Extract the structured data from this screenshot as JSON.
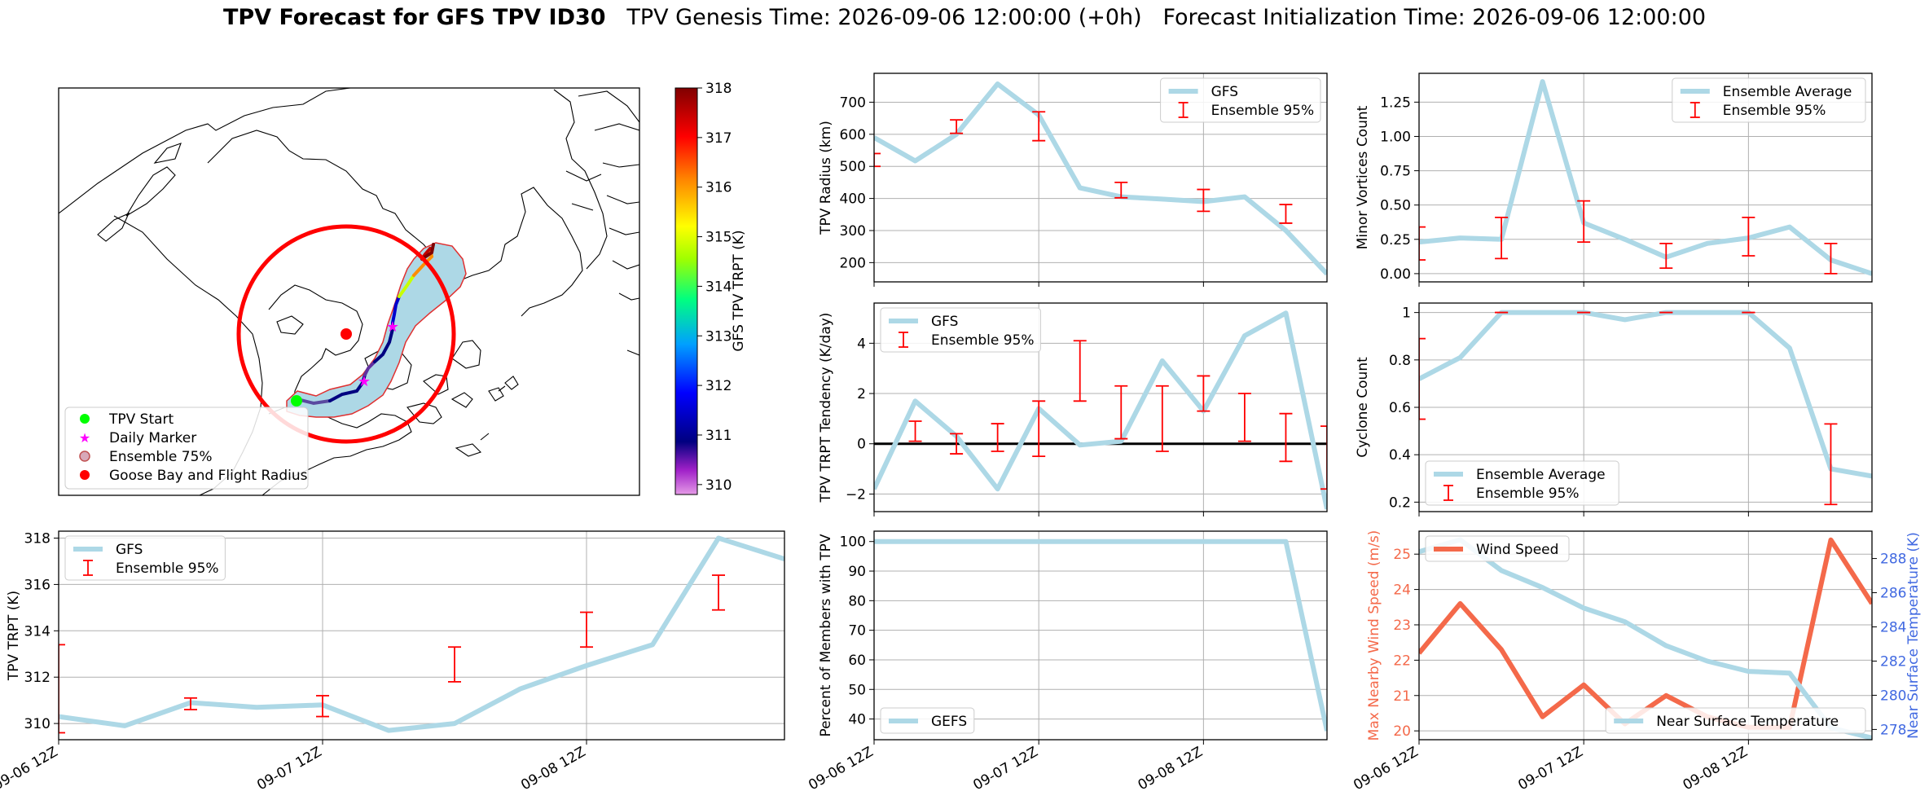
{
  "title": {
    "bold": "TPV Forecast for GFS TPV ID30",
    "genesis": "TPV Genesis Time: 2026-09-06 12:00:00 (+0h)",
    "init": "Forecast Initialization Time: 2026-09-06 12:00:00"
  },
  "colors": {
    "series": "#add8e6",
    "errorbar": "#ff0000",
    "wind": "#f4694a",
    "temp_axis": "#4169e1",
    "grid": "#b0b0b0"
  },
  "chart_data": [
    {
      "id": "map",
      "type": "scatter",
      "legend": [
        {
          "label": "TPV Start",
          "marker": "circle",
          "color": "#00ff00"
        },
        {
          "label": "Daily Marker",
          "marker": "star",
          "color": "#ff00ff"
        },
        {
          "label": "Ensemble 75%",
          "marker": "circle",
          "color": "#add8e6"
        },
        {
          "label": "Goose Bay and Flight Radius",
          "marker": "circle",
          "color": "#ff0000"
        }
      ],
      "colorbar": {
        "label": "GFS TPV TRPT (K)",
        "ticks": [
          310,
          311,
          312,
          313,
          314,
          315,
          316,
          317,
          318
        ],
        "range": [
          309.8,
          318
        ]
      }
    },
    {
      "id": "trpt",
      "type": "line",
      "x": [
        0,
        0.5,
        1,
        1.5,
        2,
        2.5,
        3,
        3.5,
        4,
        4.5,
        5,
        5.5
      ],
      "xticks": [
        "09-06 12Z",
        "09-07 12Z",
        "09-08 12Z"
      ],
      "xticks_at": [
        0,
        2,
        4
      ],
      "xlim": [
        0,
        5.5
      ],
      "ylim": [
        309.3,
        318.3
      ],
      "yticks": [
        310,
        312,
        314,
        316,
        318
      ],
      "ylabel": "TPV TRPT (K)",
      "legend_position": "upper-left",
      "series": [
        {
          "name": "GFS",
          "values": [
            310.3,
            309.9,
            310.9,
            310.7,
            310.8,
            309.7,
            310.0,
            311.5,
            312.5,
            313.4,
            318.0,
            317.1
          ]
        }
      ],
      "errorbars": {
        "name": "Ensemble 95%",
        "x": [
          0,
          1,
          2,
          3,
          4,
          5
        ],
        "low": [
          309.6,
          310.6,
          310.3,
          311.8,
          313.3,
          314.9
        ],
        "high": [
          313.4,
          311.1,
          311.2,
          313.3,
          314.8,
          316.4
        ]
      }
    },
    {
      "id": "radius",
      "type": "line",
      "x": [
        0,
        0.5,
        1,
        1.5,
        2,
        2.5,
        3,
        3.5,
        4,
        4.5,
        5,
        5.5
      ],
      "xlim": [
        0,
        5.5
      ],
      "ylim": [
        140,
        790
      ],
      "yticks": [
        200,
        300,
        400,
        500,
        600,
        700
      ],
      "ylabel": "TPV Radius (km)",
      "legend_position": "upper-right",
      "series": [
        {
          "name": "GFS",
          "values": [
            590,
            517,
            600,
            757,
            660,
            433,
            405,
            398,
            390,
            405,
            300,
            165
          ]
        }
      ],
      "errorbars": {
        "name": "Ensemble 95%",
        "x": [
          0,
          1,
          1.5,
          2,
          2.5,
          3,
          3.5,
          4,
          4.5,
          5
        ],
        "low": [
          500,
          603,
          null,
          580,
          null,
          402,
          null,
          360,
          null,
          323
        ],
        "high": [
          540,
          645,
          null,
          670,
          null,
          450,
          null,
          428,
          null,
          381
        ]
      }
    },
    {
      "id": "minor",
      "type": "line",
      "x": [
        0,
        0.5,
        1,
        1.5,
        2,
        2.5,
        3,
        3.5,
        4,
        4.5,
        5,
        5.5
      ],
      "xlim": [
        0,
        5.5
      ],
      "ylim": [
        -0.06,
        1.46
      ],
      "yticks": [
        0.0,
        0.25,
        0.5,
        0.75,
        1.0,
        1.25
      ],
      "ylabel": "Minor Vortices Count",
      "legend_position": "upper-right",
      "series": [
        {
          "name": "Ensemble Average",
          "values": [
            0.23,
            0.26,
            0.25,
            1.4,
            0.37,
            0.25,
            0.12,
            0.22,
            0.26,
            0.34,
            0.1,
            0.0
          ]
        }
      ],
      "errorbars": {
        "name": "Ensemble 95%",
        "x": [
          0,
          1,
          2,
          3,
          4,
          5
        ],
        "low": [
          0.1,
          0.11,
          0.23,
          0.04,
          0.13,
          0.0
        ],
        "high": [
          0.34,
          0.41,
          0.53,
          0.22,
          0.41,
          0.22
        ]
      }
    },
    {
      "id": "tendency",
      "type": "line",
      "x": [
        0,
        0.5,
        1,
        1.5,
        2,
        2.5,
        3,
        3.5,
        4,
        4.5,
        5,
        5.5
      ],
      "xlim": [
        0,
        5.5
      ],
      "ylim": [
        -2.7,
        5.6
      ],
      "yticks": [
        -2,
        0,
        2,
        4
      ],
      "ylabel": "TPV TRPT Tendency (K/day)",
      "legend_position": "upper-left",
      "zero_line": true,
      "series": [
        {
          "name": "GFS",
          "values": [
            -1.8,
            1.7,
            0.3,
            -1.8,
            1.4,
            -0.05,
            0.1,
            3.3,
            1.3,
            4.3,
            5.2,
            -2.6
          ]
        }
      ],
      "errorbars": {
        "name": "Ensemble 95%",
        "x": [
          0,
          0.5,
          1,
          1.5,
          2,
          2.5,
          3,
          3.5,
          4,
          4.5,
          5,
          5.5
        ],
        "low": [
          null,
          0.1,
          -0.4,
          -0.3,
          -0.5,
          1.7,
          0.2,
          -0.3,
          1.3,
          0.1,
          -0.7,
          -1.8
        ],
        "high": [
          null,
          0.9,
          0.4,
          0.8,
          1.7,
          4.1,
          2.3,
          2.3,
          2.7,
          2.0,
          1.2,
          0.7
        ]
      }
    },
    {
      "id": "cyclone",
      "type": "line",
      "x": [
        0,
        0.5,
        1,
        1.5,
        2,
        2.5,
        3,
        3.5,
        4,
        4.5,
        5,
        5.5
      ],
      "xlim": [
        0,
        5.5
      ],
      "ylim": [
        0.16,
        1.04
      ],
      "yticks": [
        0.2,
        0.4,
        0.6,
        0.8,
        1.0
      ],
      "ylabel": "Cyclone Count",
      "legend_position": "lower-left",
      "series": [
        {
          "name": "Ensemble Average",
          "values": [
            0.72,
            0.81,
            1.0,
            1.0,
            1.0,
            0.97,
            1.0,
            1.0,
            1.0,
            0.85,
            0.34,
            0.31
          ]
        }
      ],
      "errorbars": {
        "name": "Ensemble 95%",
        "x": [
          0,
          1,
          2,
          3,
          4,
          5
        ],
        "low": [
          0.55,
          1.0,
          1.0,
          1.0,
          1.0,
          0.19
        ],
        "high": [
          0.89,
          1.0,
          1.0,
          1.0,
          1.0,
          0.53
        ]
      }
    },
    {
      "id": "percent",
      "type": "line",
      "x": [
        0,
        0.5,
        1,
        1.5,
        2,
        2.5,
        3,
        3.5,
        4,
        4.5,
        5,
        5.5
      ],
      "xticks": [
        "09-06 12Z",
        "09-07 12Z",
        "09-08 12Z"
      ],
      "xticks_at": [
        0,
        2,
        4
      ],
      "xlim": [
        0,
        5.5
      ],
      "ylim": [
        33,
        103.5
      ],
      "yticks": [
        40,
        50,
        60,
        70,
        80,
        90,
        100
      ],
      "ylabel": "Percent of Members with TPV",
      "legend_position": "lower-left",
      "series": [
        {
          "name": "GEFS",
          "values": [
            100,
            100,
            100,
            100,
            100,
            100,
            100,
            100,
            100,
            100,
            100,
            36
          ]
        }
      ]
    },
    {
      "id": "wind",
      "type": "line",
      "x": [
        0,
        0.5,
        1,
        1.5,
        2,
        2.5,
        3,
        3.5,
        4,
        4.5,
        5,
        5.5
      ],
      "xticks": [
        "09-06 12Z",
        "09-07 12Z",
        "09-08 12Z"
      ],
      "xticks_at": [
        0,
        2,
        4
      ],
      "xlim": [
        0,
        5.5
      ],
      "ylim": [
        19.75,
        25.65
      ],
      "yticks": [
        20,
        21,
        22,
        23,
        24,
        25
      ],
      "ylabel": "Max Nearby Wind Speed (m/s)",
      "y2lim": [
        277.4,
        289.6
      ],
      "y2ticks": [
        278,
        280,
        282,
        284,
        286,
        288
      ],
      "y2label": "Near Surface Temperature (K)",
      "series": [
        {
          "name": "Wind Speed",
          "axis": "y",
          "values": [
            22.2,
            23.6,
            22.3,
            20.4,
            21.3,
            20.2,
            21.0,
            20.4,
            20.1,
            20.1,
            25.4,
            23.6
          ]
        },
        {
          "name": "Near Surface Temperature",
          "axis": "y2",
          "values": [
            288.4,
            289.1,
            287.3,
            286.3,
            285.1,
            284.3,
            282.9,
            282.0,
            281.4,
            281.3,
            278.1,
            277.5
          ]
        }
      ]
    }
  ]
}
